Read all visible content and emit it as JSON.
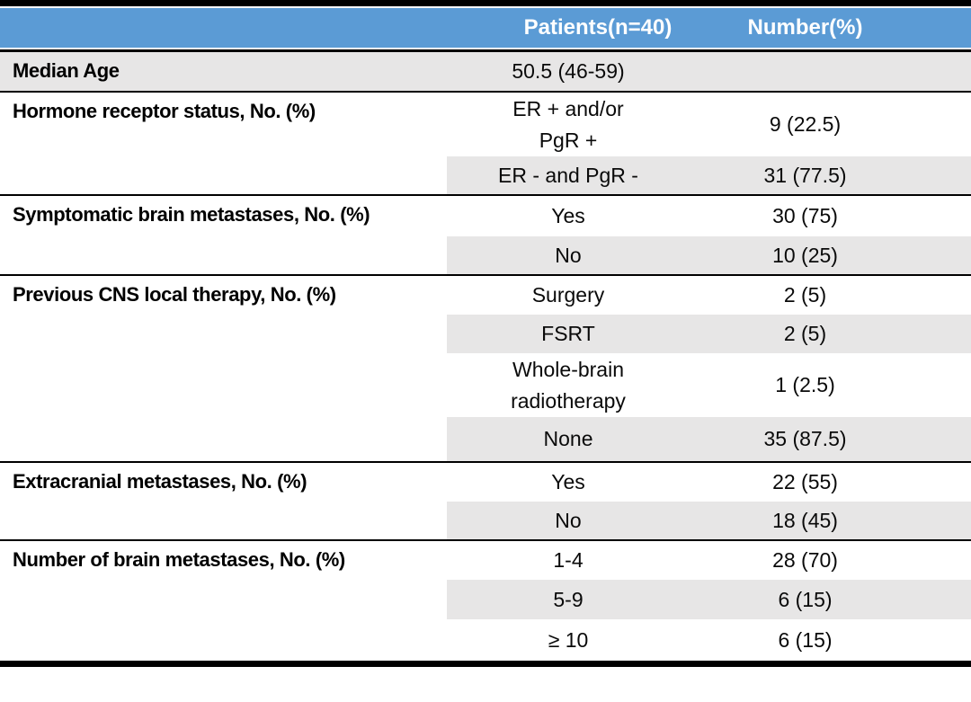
{
  "table": {
    "header": {
      "label_col": "",
      "patients_col": "Patients(n=40)",
      "number_col": "Number(%)"
    },
    "groups": [
      {
        "label": "Median Age",
        "rows": [
          {
            "patients": "50.5 (46-59)",
            "number": ""
          }
        ]
      },
      {
        "label": "Hormone receptor status, No. (%)",
        "rows": [
          {
            "patients": "ER + and/or\nPgR +",
            "number": "9 (22.5)"
          },
          {
            "patients": "ER - and PgR -",
            "number": "31 (77.5)"
          }
        ]
      },
      {
        "label": "Symptomatic brain metastases, No. (%)",
        "rows": [
          {
            "patients": "Yes",
            "number": "30 (75)"
          },
          {
            "patients": "No",
            "number": "10 (25)"
          }
        ]
      },
      {
        "label": "Previous CNS local therapy, No. (%)",
        "rows": [
          {
            "patients": "Surgery",
            "number": "2 (5)"
          },
          {
            "patients": "FSRT",
            "number": "2 (5)"
          },
          {
            "patients": "Whole-brain\nradiotherapy",
            "number": "1 (2.5)"
          },
          {
            "patients": "None",
            "number": "35 (87.5)"
          }
        ]
      },
      {
        "label": "Extracranial metastases, No. (%)",
        "rows": [
          {
            "patients": "Yes",
            "number": "22 (55)"
          },
          {
            "patients": "No",
            "number": "18 (45)"
          }
        ]
      },
      {
        "label": "Number of brain metastases, No. (%)",
        "rows": [
          {
            "patients": "1-4",
            "number": "28 (70)"
          },
          {
            "patients": "5-9",
            "number": "6 (15)"
          },
          {
            "patients": "≥ 10",
            "number": "6 (15)"
          }
        ]
      }
    ],
    "colors": {
      "header_bg": "#5B9BD5",
      "header_text": "#FFFFFF",
      "band_bg": "#E7E6E6",
      "rule": "#000000"
    }
  }
}
